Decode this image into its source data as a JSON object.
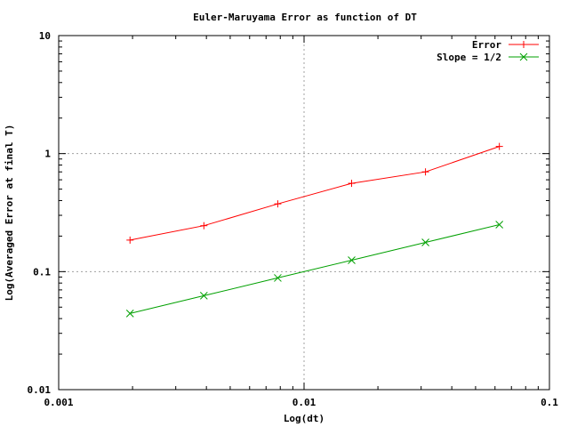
{
  "chart_data": {
    "type": "line",
    "title": "Euler-Maruyama Error as function of DT",
    "xlabel": "Log(dt)",
    "ylabel": "Log(Averaged Error at final T)",
    "x_scale": "log",
    "y_scale": "log",
    "xlim": [
      0.001,
      0.1
    ],
    "ylim": [
      0.01,
      10
    ],
    "x_ticks": [
      "0.001",
      "0.01",
      "0.1"
    ],
    "y_ticks": [
      "0.01",
      "0.1",
      "1",
      "10"
    ],
    "x_tick_values": [
      0.001,
      0.01,
      0.1
    ],
    "y_tick_values": [
      0.01,
      0.1,
      1,
      10
    ],
    "grid": true,
    "legend_position": "top-right",
    "series": [
      {
        "name": "Error",
        "color": "#ff0000",
        "marker": "plus",
        "x": [
          0.001953,
          0.003906,
          0.007813,
          0.015625,
          0.03125,
          0.0625
        ],
        "y": [
          0.185,
          0.245,
          0.375,
          0.56,
          0.7,
          1.15
        ]
      },
      {
        "name": "Slope = 1/2",
        "color": "#00a000",
        "marker": "cross",
        "x": [
          0.001953,
          0.003906,
          0.007813,
          0.015625,
          0.03125,
          0.0625
        ],
        "y": [
          0.0442,
          0.0625,
          0.0884,
          0.125,
          0.1768,
          0.25
        ]
      }
    ]
  }
}
